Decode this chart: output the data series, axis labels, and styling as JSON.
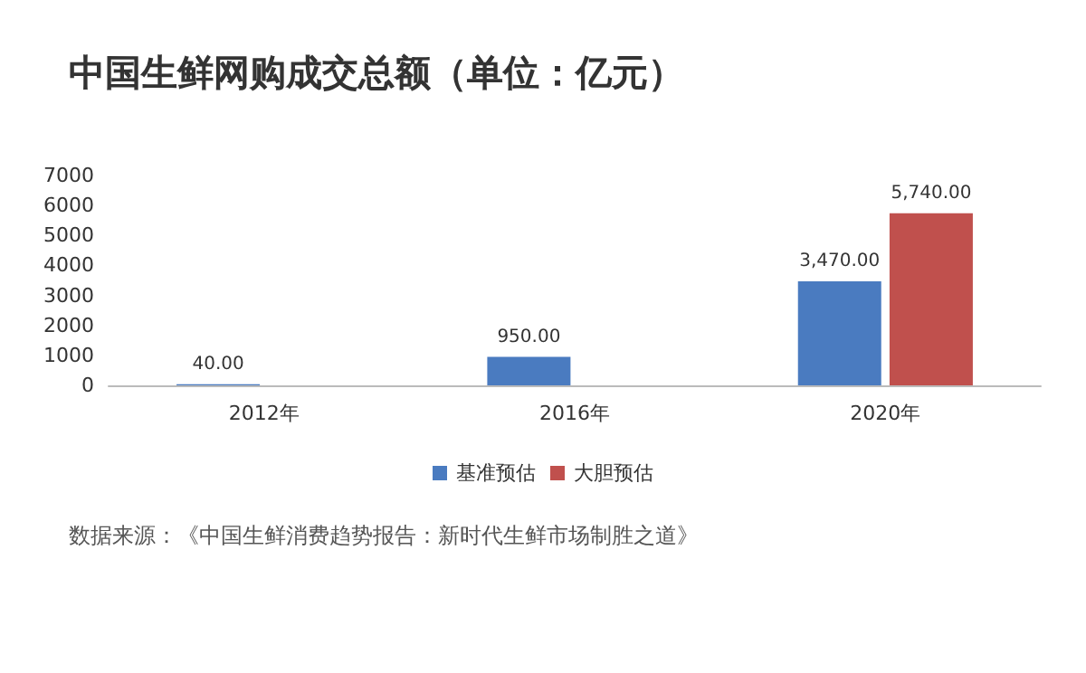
{
  "chart_data": {
    "type": "bar",
    "title": "中国生鲜网购成交总额（单位：亿元）",
    "categories": [
      "2012年",
      "2016年",
      "2020年"
    ],
    "series": [
      {
        "name": "基准预估",
        "color": "#4a7bc0",
        "values": [
          40,
          950,
          3470
        ],
        "value_labels": [
          "40.00",
          "950.00",
          "3,470.00"
        ]
      },
      {
        "name": "大胆预估",
        "color": "#c0504d",
        "values": [
          null,
          null,
          5740
        ],
        "value_labels": [
          null,
          null,
          "5,740.00"
        ]
      }
    ],
    "ylim": [
      0,
      7000
    ],
    "yticks": [
      0,
      1000,
      2000,
      3000,
      4000,
      5000,
      6000,
      7000
    ],
    "grid": false,
    "legend": "bottom",
    "annotations": [
      "数据来源：《中国生鲜消费趋势报告：新时代生鲜市场制胜之道》"
    ]
  }
}
